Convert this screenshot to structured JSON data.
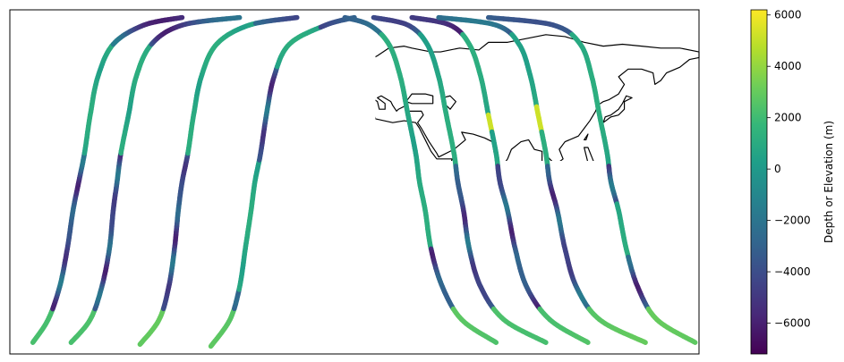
{
  "chart_data": {
    "type": "scatter",
    "projection": "plate-carree",
    "xlim": [
      -180,
      180
    ],
    "ylim": [
      -90,
      90
    ],
    "grid": false,
    "coastlines": true,
    "colorbar": {
      "label": "Depth or Elevation (m)",
      "range": [
        -7200,
        6200
      ],
      "ticks": [
        -6000,
        -4000,
        -2000,
        0,
        2000,
        4000,
        6000
      ],
      "tick_labels": [
        "−6000",
        "−4000",
        "−2000",
        "0",
        "2000",
        "4000",
        "6000"
      ],
      "colormap": "viridis",
      "colors": [
        "#440154",
        "#482878",
        "#3e4989",
        "#31688e",
        "#26828e",
        "#1f9e89",
        "#35b779",
        "#6ece58",
        "#b5de2b",
        "#fde725"
      ]
    },
    "series": [
      {
        "track": [
          [
            -168,
            -84
          ],
          [
            -160,
            -72
          ],
          [
            -154,
            -55
          ],
          [
            -150,
            -35
          ],
          [
            -147,
            -15
          ],
          [
            -144,
            0
          ],
          [
            -141,
            15
          ],
          [
            -138,
            35
          ],
          [
            -134,
            55
          ],
          [
            -126,
            72
          ],
          [
            -110,
            82
          ],
          [
            -90,
            86
          ]
        ]
      },
      {
        "track": [
          [
            -148,
            -84
          ],
          [
            -138,
            -72
          ],
          [
            -132,
            -55
          ],
          [
            -128,
            -35
          ],
          [
            -126,
            -15
          ],
          [
            -124,
            0
          ],
          [
            -122,
            15
          ],
          [
            -118,
            35
          ],
          [
            -114,
            55
          ],
          [
            -106,
            72
          ],
          [
            -90,
            82
          ],
          [
            -60,
            86
          ]
        ]
      },
      {
        "track": [
          [
            -112,
            -85
          ],
          [
            -102,
            -72
          ],
          [
            -97,
            -55
          ],
          [
            -94,
            -35
          ],
          [
            -92,
            -15
          ],
          [
            -90,
            0
          ],
          [
            -87,
            15
          ],
          [
            -84,
            35
          ],
          [
            -80,
            55
          ],
          [
            -72,
            72
          ],
          [
            -55,
            82
          ],
          [
            -30,
            86
          ]
        ]
      },
      {
        "track": [
          [
            -75,
            -86
          ],
          [
            -65,
            -72
          ],
          [
            -60,
            -55
          ],
          [
            -57,
            -35
          ],
          [
            -54,
            -15
          ],
          [
            -52,
            0
          ],
          [
            -49,
            15
          ],
          [
            -46,
            35
          ],
          [
            -42,
            55
          ],
          [
            -34,
            72
          ],
          [
            -15,
            82
          ],
          [
            0,
            86
          ]
        ]
      },
      {
        "track": [
          [
            -5,
            86
          ],
          [
            8,
            82
          ],
          [
            18,
            72
          ],
          [
            24,
            55
          ],
          [
            28,
            35
          ],
          [
            32,
            15
          ],
          [
            34,
            0
          ],
          [
            37,
            -15
          ],
          [
            40,
            -35
          ],
          [
            46,
            -55
          ],
          [
            56,
            -72
          ],
          [
            74,
            -84
          ]
        ]
      },
      {
        "track": [
          [
            10,
            86
          ],
          [
            28,
            82
          ],
          [
            38,
            72
          ],
          [
            44,
            55
          ],
          [
            48,
            35
          ],
          [
            52,
            15
          ],
          [
            54,
            0
          ],
          [
            57,
            -15
          ],
          [
            60,
            -35
          ],
          [
            66,
            -55
          ],
          [
            78,
            -72
          ],
          [
            100,
            -84
          ]
        ]
      },
      {
        "track": [
          [
            30,
            86
          ],
          [
            50,
            82
          ],
          [
            60,
            72
          ],
          [
            66,
            55
          ],
          [
            70,
            35
          ],
          [
            74,
            15
          ],
          [
            76,
            0
          ],
          [
            80,
            -15
          ],
          [
            84,
            -35
          ],
          [
            90,
            -55
          ],
          [
            102,
            -72
          ],
          [
            122,
            -84
          ]
        ]
      },
      {
        "track": [
          [
            44,
            86
          ],
          [
            74,
            82
          ],
          [
            86,
            72
          ],
          [
            92,
            55
          ],
          [
            96,
            35
          ],
          [
            100,
            15
          ],
          [
            102,
            0
          ],
          [
            106,
            -15
          ],
          [
            110,
            -35
          ],
          [
            116,
            -55
          ],
          [
            128,
            -72
          ],
          [
            152,
            -84
          ]
        ]
      },
      {
        "track": [
          [
            70,
            86
          ],
          [
            104,
            82
          ],
          [
            118,
            72
          ],
          [
            124,
            55
          ],
          [
            128,
            35
          ],
          [
            132,
            15
          ],
          [
            134,
            0
          ],
          [
            138,
            -15
          ],
          [
            142,
            -35
          ],
          [
            148,
            -55
          ],
          [
            158,
            -72
          ],
          [
            178,
            -84
          ]
        ]
      }
    ]
  }
}
